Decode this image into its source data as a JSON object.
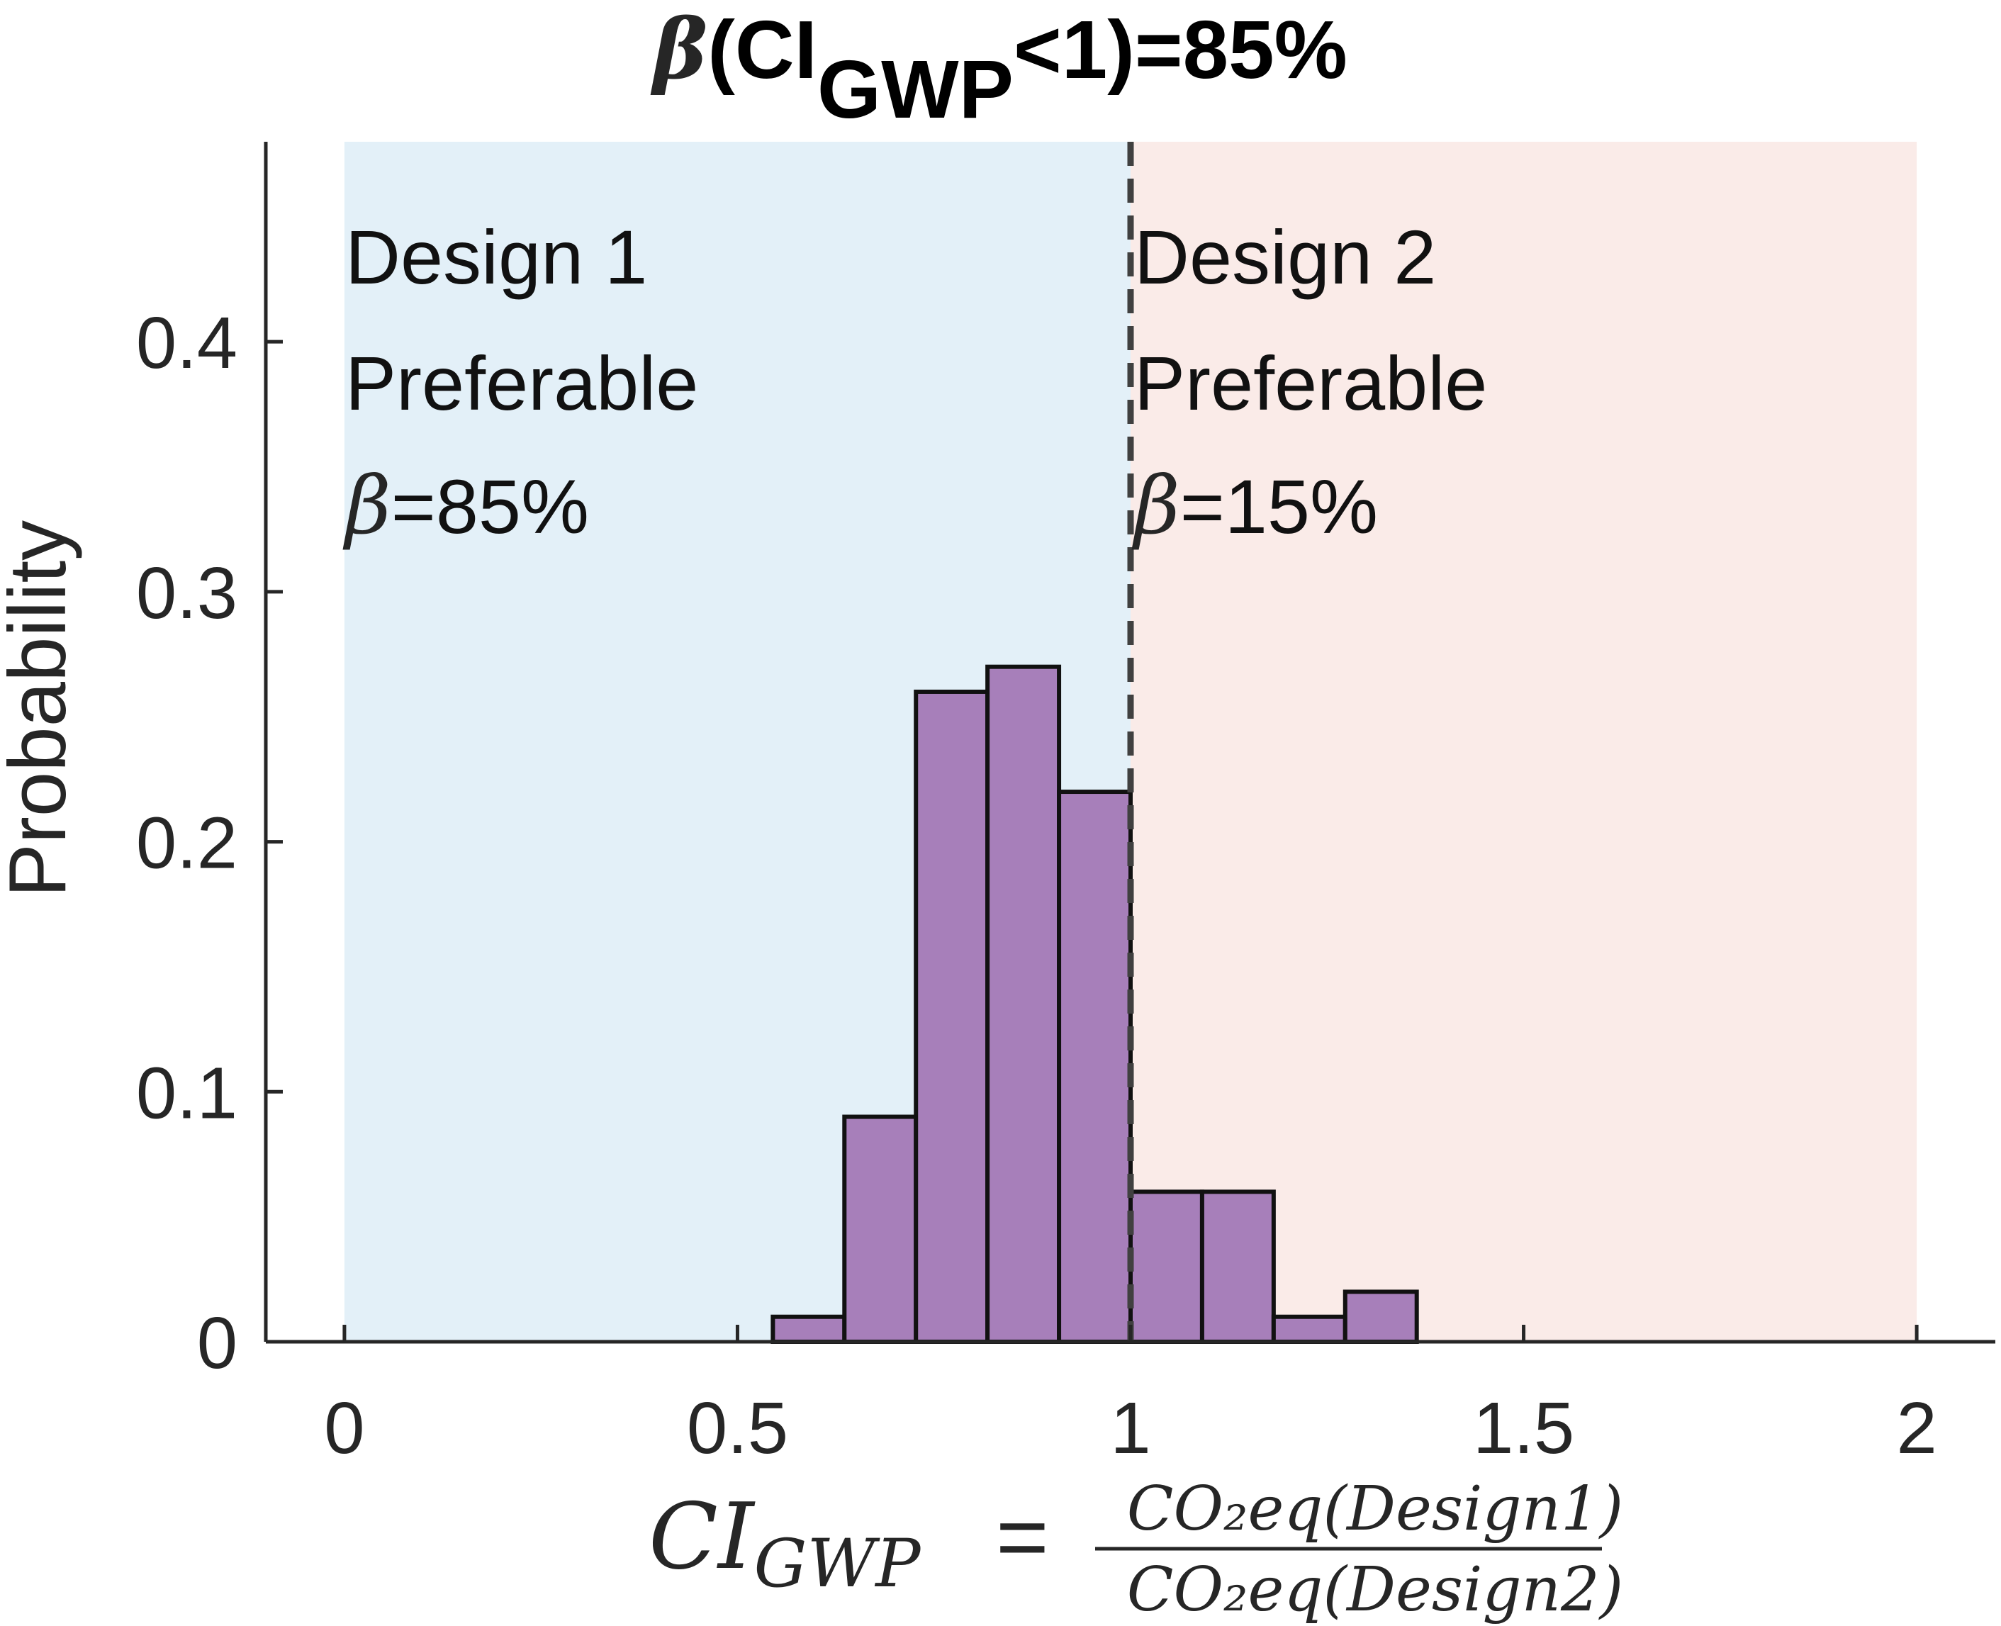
{
  "title": {
    "beta": "β",
    "open": "(CI",
    "sub": "GWP",
    "rest": "<1)=85%"
  },
  "regions": {
    "left": {
      "line1": "Design 1",
      "line2": "Preferable",
      "beta": "β",
      "value": "=85%",
      "color": "#e3f0f8"
    },
    "right": {
      "line1": "Design 2",
      "line2": "Preferable",
      "beta": "β",
      "value": "=15%",
      "color": "#faebe8"
    }
  },
  "xlabel": {
    "lhs": "CI",
    "lhs_sub": "GWP",
    "equals": "=",
    "numerator": "CO₂eq(Design1)",
    "denominator": "CO₂eq(Design2)"
  },
  "ylabel": "Probability",
  "chart_data": {
    "type": "bar",
    "title": "β(CI_GWP<1)=85%",
    "xlabel": "CI_GWP = CO2eq(Design1) / CO2eq(Design2)",
    "ylabel": "Probability",
    "xlim": [
      -0.1,
      2.1
    ],
    "ylim": [
      0,
      0.48
    ],
    "xticks": [
      0,
      0.5,
      1,
      1.5,
      2
    ],
    "xtick_labels": [
      "0",
      "0.5",
      "1",
      "1.5",
      "2"
    ],
    "yticks": [
      0,
      0.1,
      0.2,
      0.3,
      0.4
    ],
    "ytick_labels": [
      "0",
      "0.1",
      "0.2",
      "0.3",
      "0.4"
    ],
    "threshold_x": 1,
    "bins": [
      {
        "x0": 0.545,
        "x1": 0.636,
        "value": 0.01
      },
      {
        "x0": 0.636,
        "x1": 0.727,
        "value": 0.09
      },
      {
        "x0": 0.727,
        "x1": 0.818,
        "value": 0.26
      },
      {
        "x0": 0.818,
        "x1": 0.909,
        "value": 0.27
      },
      {
        "x0": 0.909,
        "x1": 1.0,
        "value": 0.22
      },
      {
        "x0": 1.0,
        "x1": 1.091,
        "value": 0.06
      },
      {
        "x0": 1.091,
        "x1": 1.182,
        "value": 0.06
      },
      {
        "x0": 1.182,
        "x1": 1.273,
        "value": 0.01
      },
      {
        "x0": 1.273,
        "x1": 1.364,
        "value": 0.02
      }
    ],
    "regions": [
      {
        "x0": 0,
        "x1": 1,
        "label": "Design 1 Preferable β=85%"
      },
      {
        "x0": 1,
        "x1": 2,
        "label": "Design 2 Preferable β=15%"
      }
    ],
    "bar_color": "#a77fba",
    "bar_edge_color": "#111111",
    "grid": false
  }
}
